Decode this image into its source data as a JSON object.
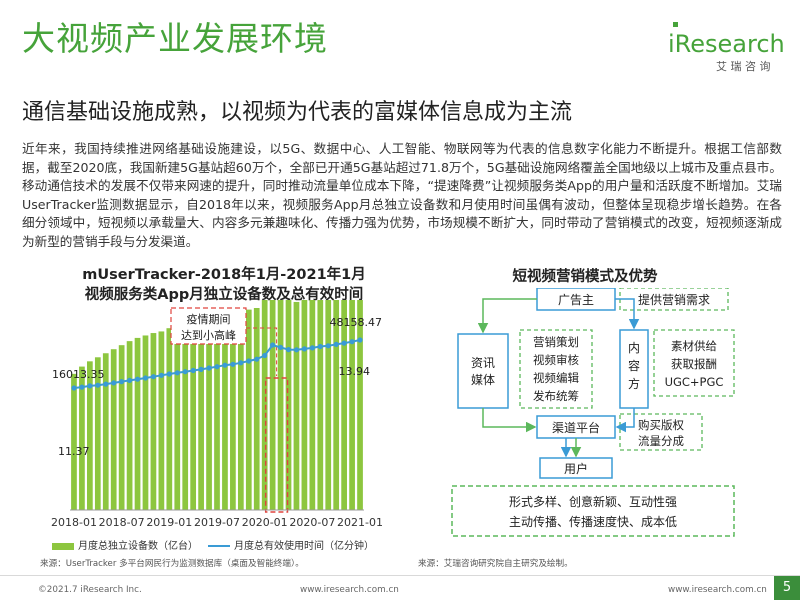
{
  "title": "大视频产业发展环境",
  "subtitle": "通信基础设施成熟，以视频为代表的富媒体信息成为主流",
  "logo": {
    "wordmark": "iResearch",
    "cn": "艾 瑞 咨 询",
    "color": "#46a33a"
  },
  "body_text": "近年来，我国持续推进网络基础设施建设，以5G、数据中心、人工智能、物联网等为代表的信息数字化能力不断提升。根据工信部数据，截至2020底，我国新建5G基站超60万个，全部已开通5G基站超过71.8万个，5G基础设施网络覆盖全国地级以上城市及重点县市。移动通信技术的发展不仅带来网速的提升，同时推动流量单位成本下降，“提速降费”让视频服务类App的用户量和活跃度不断增加。艾瑞UserTracker监测数据显示，自2018年以来，视频服务App月总独立设备数和月使用时间虽偶有波动，但整体呈现稳步增长趋势。在各细分领域中，短视频以承载量大、内容多元兼趣味化、传播力强为优势，市场规模不断扩大，同时带动了营销模式的改变，短视频逐渐成为新型的营销手段与分发渠道。",
  "left_chart_title_line1": "mUserTracker-2018年1月-2021年1月",
  "left_chart_title_line2": "视频服务类App月独立设备数及总有效时间",
  "right_chart_title": "短视频营销模式及优势",
  "chart_data": {
    "type": "bar+line",
    "categories": [
      "2018-01",
      "2018-02",
      "2018-03",
      "2018-04",
      "2018-05",
      "2018-06",
      "2018-07",
      "2018-08",
      "2018-09",
      "2018-10",
      "2018-11",
      "2018-12",
      "2019-01",
      "2019-02",
      "2019-03",
      "2019-04",
      "2019-05",
      "2019-06",
      "2019-07",
      "2019-08",
      "2019-09",
      "2019-10",
      "2019-11",
      "2019-12",
      "2020-01",
      "2020-02",
      "2020-03",
      "2020-04",
      "2020-05",
      "2020-06",
      "2020-07",
      "2020-08",
      "2020-09",
      "2020-10",
      "2020-11",
      "2020-12",
      "2021-01"
    ],
    "x_tick_labels": [
      "2018-01",
      "2018-07",
      "2019-01",
      "2019-07",
      "2020-01",
      "2020-07",
      "2021-01"
    ],
    "series": [
      {
        "name": "月度总独立设备数（亿台）",
        "type": "bar",
        "color": "#8dc63f",
        "values": [
          11.37,
          11.55,
          11.68,
          11.78,
          11.88,
          11.98,
          12.08,
          12.18,
          12.26,
          12.32,
          12.38,
          12.42,
          12.5,
          12.56,
          12.6,
          12.62,
          12.7,
          12.76,
          12.8,
          12.86,
          12.9,
          12.92,
          12.96,
          13.0,
          13.2,
          13.9,
          13.45,
          13.2,
          13.15,
          13.2,
          13.25,
          13.3,
          13.4,
          13.5,
          13.6,
          13.8,
          13.94
        ],
        "data_labels": {
          "first": "11.37",
          "last": "13.94"
        }
      },
      {
        "name": "月度总有效使用时间（亿分钟）",
        "type": "line",
        "color": "#3a9bd5",
        "values": [
          16013.35,
          16600,
          17400,
          17900,
          18600,
          19400,
          20300,
          21100,
          21900,
          22700,
          23600,
          24500,
          25400,
          26200,
          26900,
          27700,
          28500,
          29400,
          30300,
          31300,
          31900,
          32900,
          34100,
          35300,
          37800,
          44800,
          43200,
          41700,
          41600,
          42200,
          42900,
          43800,
          44300,
          45200,
          46100,
          47000,
          48158.47
        ],
        "data_labels": {
          "first": "16013.35",
          "last": "48158.47"
        }
      }
    ],
    "annotation": {
      "text_line1": "疫情期间",
      "text_line2": "达到小高峰",
      "highlight_category": "2020-02"
    }
  },
  "diagram": {
    "advertiser": "广告主",
    "provide_demand": "提供营销需求",
    "info_media": [
      "资讯",
      "媒体"
    ],
    "marketing_services": [
      "营销策划",
      "视频审核",
      "视频编辑",
      "发布统筹"
    ],
    "content_creator": [
      "内",
      "容",
      "方"
    ],
    "material_supply": [
      "素材供给",
      "获取报酬",
      "UGC+PGC"
    ],
    "channel_platform": "渠道平台",
    "buy_copyright": [
      "购买版权",
      "流量分成"
    ],
    "user": "用户",
    "advantages": [
      "形式多样、创意新颖、互动性强",
      "主动传播、传播速度快、成本低"
    ],
    "colors": {
      "blue": "#3a9bd5",
      "green": "#5cb85c"
    }
  },
  "source_left": "来源：UserTracker 多平台网民行为监测数据库（桌面及智能终端）。",
  "source_right": "来源：艾瑞咨询研究院自主研究及绘制。",
  "footer": {
    "copyright": "©2021.7 iResearch Inc.",
    "url": "www.iresearch.com.cn",
    "page": "5"
  }
}
